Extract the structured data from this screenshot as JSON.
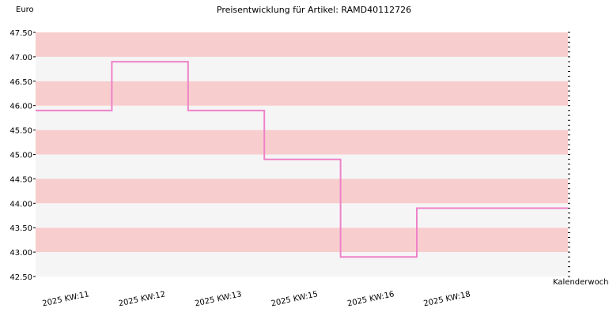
{
  "chart_data": {
    "type": "line",
    "step": true,
    "title": "Preisentwicklung für Artikel: RAMD40112726",
    "ylabel": "Euro",
    "xlabel": "Kalenderwoche",
    "ylim": [
      42.5,
      47.5
    ],
    "y_ticks": [
      "42.50",
      "43.00",
      "43.50",
      "44.00",
      "44.50",
      "45.00",
      "45.50",
      "46.00",
      "46.50",
      "47.00",
      "47.50"
    ],
    "x_tick_labels": [
      "2025 KW:11",
      "2025 KW:12",
      "2025 KW:13",
      "2025 KW:15",
      "2025 KW:16",
      "2025 KW:18"
    ],
    "series": [
      {
        "values": [
          45.9,
          46.9,
          45.9,
          44.9,
          42.9,
          43.9
        ]
      }
    ],
    "grid": true,
    "colors": {
      "line": "#ee82c8",
      "band_dark": "#f8cdcd",
      "band_light": "#f5f5f5",
      "axis": "#000000"
    }
  }
}
